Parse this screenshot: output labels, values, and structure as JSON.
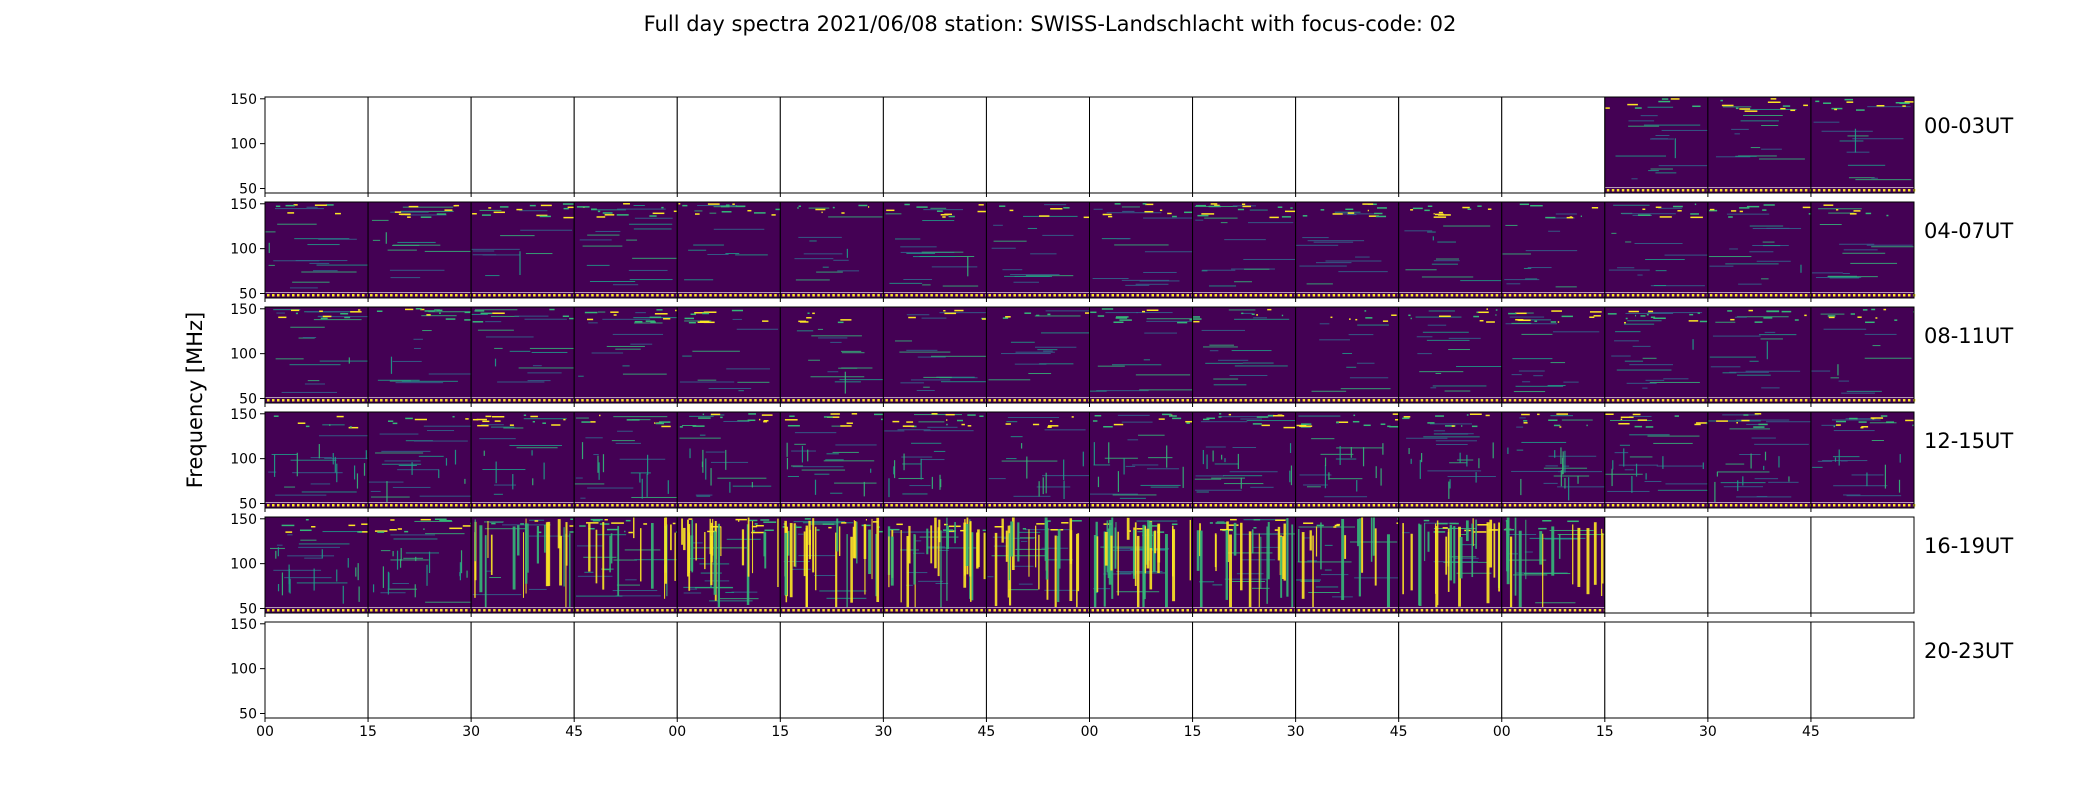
{
  "title": "Full day spectra 2021/06/08 station: SWISS-Landschlacht with focus-code: 02",
  "colors": {
    "background": "#440154",
    "mid": "#31688e",
    "teal": "#1f9e89",
    "green": "#35b779",
    "yellow": "#fde725",
    "frame": "#000000",
    "empty_panel": "#ffffff"
  },
  "chart_data": {
    "type": "heatmap",
    "colormap": "viridis",
    "title": "Full day spectra 2021/06/08 station: SWISS-Landschlacht with focus-code: 02",
    "ylabel": "Frequency [MHz]",
    "ylim": [
      45,
      152
    ],
    "yticks": [
      "150",
      "100",
      "50"
    ],
    "ytick_values": [
      150,
      100,
      50
    ],
    "xticks": [
      "00",
      "15",
      "30",
      "45",
      "00",
      "15",
      "30",
      "45",
      "00",
      "15",
      "30",
      "45",
      "00",
      "15",
      "30",
      "45"
    ],
    "panels_per_row": 16,
    "panel_minutes": 15,
    "rows": [
      {
        "label": "00-03UT",
        "filled": [
          0,
          0,
          0,
          0,
          0,
          0,
          0,
          0,
          0,
          0,
          0,
          0,
          0,
          1,
          1,
          1
        ]
      },
      {
        "label": "04-07UT",
        "filled": [
          1,
          1,
          1,
          1,
          1,
          1,
          1,
          1,
          1,
          1,
          1,
          1,
          1,
          1,
          1,
          1
        ]
      },
      {
        "label": "08-11UT",
        "filled": [
          1,
          1,
          1,
          1,
          1,
          1,
          1,
          1,
          1,
          1,
          1,
          1,
          1,
          1,
          1,
          1
        ]
      },
      {
        "label": "12-15UT",
        "filled": [
          1,
          1,
          1,
          1,
          1,
          1,
          1,
          1,
          1,
          1,
          1,
          1,
          1,
          1,
          1,
          1
        ]
      },
      {
        "label": "16-19UT",
        "filled": [
          1,
          1,
          1,
          1,
          1,
          1,
          1,
          1,
          1,
          1,
          1,
          1,
          1,
          0,
          0,
          0
        ]
      },
      {
        "label": "20-23UT",
        "filled": [
          0,
          0,
          0,
          0,
          0,
          0,
          0,
          0,
          0,
          0,
          0,
          0,
          0,
          0,
          0,
          0
        ]
      }
    ],
    "activity": [
      [
        0,
        0,
        0,
        0,
        0,
        0,
        0,
        0,
        0,
        0,
        0,
        0,
        0,
        1,
        1,
        1
      ],
      [
        1,
        1,
        1,
        1,
        1,
        1,
        1,
        1,
        1,
        1,
        1,
        1,
        1,
        1,
        1,
        1
      ],
      [
        1,
        1,
        1,
        1,
        1,
        1,
        1,
        1,
        1,
        1,
        1,
        1,
        1,
        1,
        1,
        1
      ],
      [
        2,
        2,
        2,
        2,
        2,
        2,
        2,
        2,
        2,
        2,
        2,
        2,
        2,
        2,
        2,
        2
      ],
      [
        3,
        3,
        4,
        5,
        6,
        6,
        5,
        5,
        6,
        6,
        5,
        5,
        4,
        0,
        0,
        0
      ],
      [
        0,
        0,
        0,
        0,
        0,
        0,
        0,
        0,
        0,
        0,
        0,
        0,
        0,
        0,
        0,
        0
      ]
    ]
  }
}
